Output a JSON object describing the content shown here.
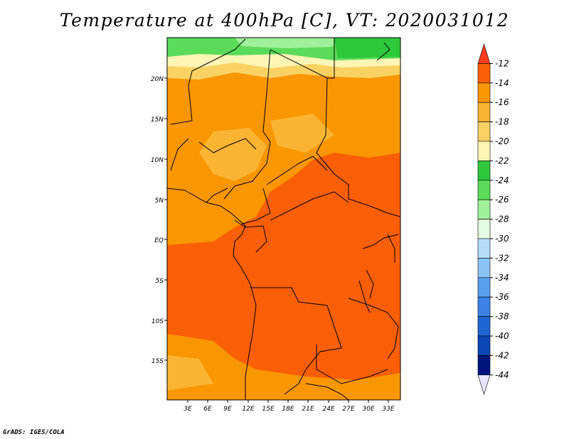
{
  "title": "Temperature at 400hPa [C], VT: 2020031012",
  "credit": "GrADS: IGES/COLA",
  "map": {
    "lat_ticks": [
      "20N",
      "15N",
      "10N",
      "5N",
      "EQ",
      "5S",
      "10S",
      "15S"
    ],
    "lon_ticks": [
      "3E",
      "6E",
      "9E",
      "12E",
      "15E",
      "18E",
      "21E",
      "24E",
      "27E",
      "30E",
      "33E"
    ]
  },
  "colorbar": {
    "levels": [
      "-12",
      "-14",
      "-16",
      "-18",
      "-20",
      "-22",
      "-24",
      "-26",
      "-28",
      "-30",
      "-32",
      "-34",
      "-36",
      "-38",
      "-40",
      "-42",
      "-44"
    ],
    "colors": [
      "#fa3c1e",
      "#fa5f05",
      "#fa9600",
      "#fab432",
      "#fad264",
      "#fff5b4",
      "#2dc83c",
      "#5adc5a",
      "#a0f09b",
      "#e1fae1",
      "#b4dcfa",
      "#8cc3f5",
      "#5aa0f0",
      "#3c82e6",
      "#1e64d2",
      "#0a46b4",
      "#00147d",
      "#e6e6fa"
    ]
  }
}
